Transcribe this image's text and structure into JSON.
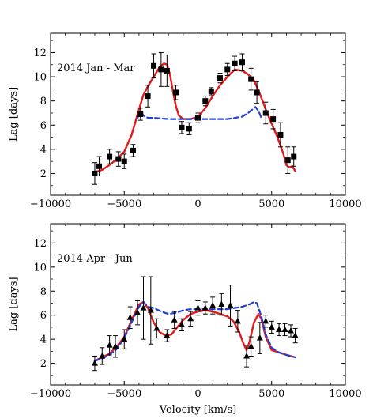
{
  "chart_data": [
    {
      "type": "scatter",
      "title": "2014 Jan - Mar",
      "xlabel": "",
      "ylabel": "Lag [days]",
      "xlim": [
        -10000,
        10000
      ],
      "ylim": [
        0.2,
        13.6
      ],
      "xticks": [
        -10000,
        -5000,
        0,
        5000,
        10000
      ],
      "xtick_labels": [
        "−10000",
        "−5000",
        "0",
        "5000",
        "10000"
      ],
      "yticks": [
        2,
        4,
        6,
        8,
        10,
        12
      ],
      "ytick_labels": [
        "2",
        "4",
        "6",
        "8",
        "10",
        "12"
      ],
      "marker": "square",
      "colors": {
        "data": "#000000",
        "red_model": "#e41a1c",
        "blue_model": "#1f3fd8"
      },
      "points": [
        {
          "x": -7000,
          "y": 2.0,
          "err": 0.9
        },
        {
          "x": -6700,
          "y": 2.6,
          "err": 0.8
        },
        {
          "x": -6000,
          "y": 3.4,
          "err": 0.6
        },
        {
          "x": -5400,
          "y": 3.2,
          "err": 0.6
        },
        {
          "x": -5000,
          "y": 3.0,
          "err": 0.6
        },
        {
          "x": -4400,
          "y": 3.9,
          "err": 0.5
        },
        {
          "x": -3900,
          "y": 6.9,
          "err": 0.5
        },
        {
          "x": -3400,
          "y": 8.4,
          "err": 0.9
        },
        {
          "x": -3000,
          "y": 10.9,
          "err": 1.0
        },
        {
          "x": -2500,
          "y": 10.6,
          "err": 1.4
        },
        {
          "x": -2100,
          "y": 10.5,
          "err": 1.3
        },
        {
          "x": -1500,
          "y": 8.7,
          "err": 0.6
        },
        {
          "x": -1100,
          "y": 5.8,
          "err": 0.5
        },
        {
          "x": -600,
          "y": 5.7,
          "err": 0.5
        },
        {
          "x": 0,
          "y": 6.6,
          "err": 0.4
        },
        {
          "x": 500,
          "y": 8.0,
          "err": 0.4
        },
        {
          "x": 900,
          "y": 8.8,
          "err": 0.3
        },
        {
          "x": 1500,
          "y": 9.9,
          "err": 0.4
        },
        {
          "x": 2000,
          "y": 10.6,
          "err": 0.5
        },
        {
          "x": 2500,
          "y": 11.1,
          "err": 0.6
        },
        {
          "x": 3000,
          "y": 11.2,
          "err": 0.7
        },
        {
          "x": 3600,
          "y": 9.8,
          "err": 0.9
        },
        {
          "x": 4000,
          "y": 8.7,
          "err": 0.9
        },
        {
          "x": 4600,
          "y": 7.0,
          "err": 0.9
        },
        {
          "x": 5100,
          "y": 6.5,
          "err": 0.8
        },
        {
          "x": 5600,
          "y": 5.2,
          "err": 1.0
        },
        {
          "x": 6100,
          "y": 3.1,
          "err": 1.1
        },
        {
          "x": 6500,
          "y": 3.4,
          "err": 0.8
        }
      ],
      "series": [
        {
          "style": "solid",
          "color": "#e41a1c",
          "x": [
            -7000,
            -6500,
            -6000,
            -5500,
            -5000,
            -4500,
            -4000,
            -3700,
            -3400,
            -3000,
            -2600,
            -2300,
            -2100,
            -1900,
            -1700,
            -1500,
            -1300,
            -1000,
            -500,
            0,
            500,
            1000,
            1500,
            2000,
            2500,
            3000,
            3400,
            3800,
            4200,
            4600,
            5000,
            5400,
            5800,
            6000,
            6200,
            6400,
            6600
          ],
          "y": [
            2.1,
            2.3,
            2.7,
            3.2,
            3.8,
            5.2,
            7.3,
            8.5,
            9.2,
            10.0,
            10.8,
            11.1,
            11.0,
            10.2,
            8.8,
            7.6,
            6.8,
            6.5,
            6.5,
            6.7,
            7.4,
            8.4,
            9.3,
            10.0,
            10.6,
            10.5,
            10.2,
            9.7,
            8.6,
            7.3,
            6.1,
            5.0,
            3.6,
            2.7,
            2.5,
            2.6,
            2.2
          ]
        },
        {
          "style": "dashed",
          "color": "#1f3fd8",
          "x": [
            -4100,
            -3900,
            -3700,
            -3400,
            -3000,
            -2000,
            -1000,
            0,
            1000,
            2000,
            3000,
            3400,
            3700,
            3900,
            4100,
            4300
          ],
          "y": [
            6.6,
            7.1,
            6.8,
            6.6,
            6.6,
            6.5,
            6.5,
            6.5,
            6.5,
            6.5,
            6.7,
            7.0,
            7.3,
            7.5,
            7.2,
            6.6
          ]
        }
      ]
    },
    {
      "type": "scatter",
      "title": "2014 Apr - Jun",
      "xlabel": "Velocity  [km/s]",
      "ylabel": "Lag [days]",
      "xlim": [
        -10000,
        10000
      ],
      "ylim": [
        0.2,
        13.6
      ],
      "xticks": [
        -10000,
        -5000,
        0,
        5000,
        10000
      ],
      "xtick_labels": [
        "−10000",
        "−5000",
        "0",
        "5000",
        "10000"
      ],
      "yticks": [
        2,
        4,
        6,
        8,
        10,
        12
      ],
      "ytick_labels": [
        "2",
        "4",
        "6",
        "8",
        "10",
        "12"
      ],
      "marker": "triangle",
      "colors": {
        "data": "#000000",
        "red_model": "#e41a1c",
        "blue_model": "#1f3fd8"
      },
      "points": [
        {
          "x": -7000,
          "y": 2.0,
          "err": 0.6
        },
        {
          "x": -6500,
          "y": 2.6,
          "err": 0.7
        },
        {
          "x": -6000,
          "y": 3.5,
          "err": 0.8
        },
        {
          "x": -5600,
          "y": 3.4,
          "err": 0.9
        },
        {
          "x": -5000,
          "y": 4.0,
          "err": 0.8
        },
        {
          "x": -4600,
          "y": 5.8,
          "err": 0.9
        },
        {
          "x": -4100,
          "y": 6.2,
          "err": 1.0
        },
        {
          "x": -3700,
          "y": 6.6,
          "err": 2.6
        },
        {
          "x": -3200,
          "y": 6.4,
          "err": 2.8
        },
        {
          "x": -2800,
          "y": 4.9,
          "err": 0.8
        },
        {
          "x": -2100,
          "y": 4.3,
          "err": 0.5
        },
        {
          "x": -1600,
          "y": 5.6,
          "err": 0.7
        },
        {
          "x": -1100,
          "y": 5.2,
          "err": 0.5
        },
        {
          "x": -500,
          "y": 5.7,
          "err": 0.6
        },
        {
          "x": 0,
          "y": 6.6,
          "err": 0.6
        },
        {
          "x": 500,
          "y": 6.6,
          "err": 0.5
        },
        {
          "x": 1000,
          "y": 6.8,
          "err": 0.7
        },
        {
          "x": 1600,
          "y": 6.9,
          "err": 0.9
        },
        {
          "x": 2200,
          "y": 6.8,
          "err": 1.7
        },
        {
          "x": 2700,
          "y": 5.5,
          "err": 0.9
        },
        {
          "x": 3300,
          "y": 2.6,
          "err": 0.9
        },
        {
          "x": 3600,
          "y": 3.4,
          "err": 0.8
        },
        {
          "x": 4200,
          "y": 4.1,
          "err": 1.3
        },
        {
          "x": 4600,
          "y": 5.5,
          "err": 0.5
        },
        {
          "x": 5000,
          "y": 5.0,
          "err": 0.5
        },
        {
          "x": 5500,
          "y": 4.8,
          "err": 0.5
        },
        {
          "x": 5900,
          "y": 4.8,
          "err": 0.5
        },
        {
          "x": 6300,
          "y": 4.7,
          "err": 0.5
        },
        {
          "x": 6600,
          "y": 4.3,
          "err": 0.6
        }
      ],
      "series": [
        {
          "style": "solid",
          "color": "#e41a1c",
          "x": [
            -7000,
            -6500,
            -6000,
            -5500,
            -5000,
            -4500,
            -4000,
            -3700,
            -3400,
            -3000,
            -2600,
            -2200,
            -1800,
            -1400,
            -1000,
            -500,
            0,
            500,
            1000,
            1500,
            2000,
            2400,
            2800,
            3100,
            3300,
            3500,
            3800,
            4100,
            4300,
            4600,
            5000,
            5500,
            6000,
            6600
          ],
          "y": [
            2.2,
            2.5,
            2.8,
            3.4,
            4.2,
            5.6,
            6.9,
            7.1,
            6.6,
            5.4,
            4.6,
            4.3,
            4.4,
            5.0,
            5.6,
            6.1,
            6.3,
            6.4,
            6.3,
            6.1,
            5.9,
            5.5,
            4.6,
            3.6,
            3.1,
            3.8,
            5.4,
            6.1,
            5.7,
            4.2,
            3.1,
            2.9,
            2.7,
            2.5
          ]
        },
        {
          "style": "dashed",
          "color": "#1f3fd8",
          "x": [
            -7000,
            -6500,
            -6000,
            -5500,
            -5000,
            -4500,
            -4000,
            -3700,
            -3400,
            -3000,
            -2500,
            -2000,
            -1500,
            -1000,
            -500,
            0,
            500,
            1000,
            1500,
            2000,
            2500,
            3000,
            3500,
            3800,
            4000,
            4300,
            4600,
            5000,
            5500,
            6000,
            6600
          ],
          "y": [
            2.2,
            2.4,
            2.7,
            3.2,
            4.1,
            5.4,
            6.7,
            7.1,
            6.7,
            6.6,
            6.3,
            6.1,
            6.2,
            6.4,
            6.5,
            6.5,
            6.5,
            6.5,
            6.5,
            6.5,
            6.6,
            6.7,
            6.9,
            7.1,
            7.0,
            5.9,
            4.4,
            3.3,
            2.9,
            2.7,
            2.5
          ]
        }
      ]
    }
  ]
}
